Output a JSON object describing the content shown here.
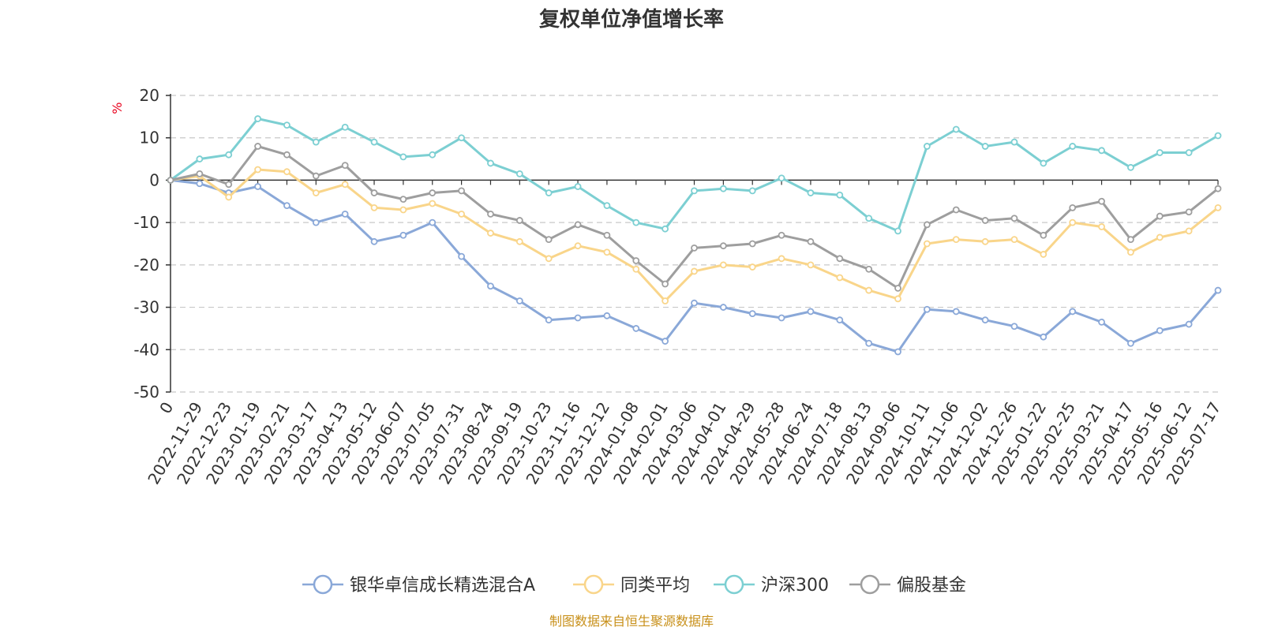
{
  "chart_data": {
    "type": "line",
    "title": "复权单位净值增长率",
    "ylabel": "%",
    "xlabel": "",
    "ylim": [
      -50,
      20
    ],
    "yticks": [
      20,
      10,
      0,
      -10,
      -20,
      -30,
      -40,
      -50
    ],
    "grid": true,
    "legend_position": "bottom",
    "source": "制图数据来自恒生聚源数据库",
    "x": [
      "0",
      "2022-11-29",
      "2022-12-23",
      "2023-01-19",
      "2023-02-21",
      "2023-03-17",
      "2023-04-13",
      "2023-05-12",
      "2023-06-07",
      "2023-07-05",
      "2023-07-31",
      "2023-08-24",
      "2023-09-19",
      "2023-10-23",
      "2023-11-16",
      "2023-12-12",
      "2024-01-08",
      "2024-02-01",
      "2024-03-06",
      "2024-04-01",
      "2024-04-29",
      "2024-05-28",
      "2024-06-24",
      "2024-07-18",
      "2024-08-13",
      "2024-09-06",
      "2024-10-11",
      "2024-11-06",
      "2024-12-02",
      "2024-12-26",
      "2025-01-22",
      "2025-02-25",
      "2025-03-21",
      "2025-04-17",
      "2025-05-16",
      "2025-06-12",
      "2025-07-17"
    ],
    "series": [
      {
        "name": "银华卓信成长精选混合A",
        "color": "#8aa8d8",
        "values": [
          0,
          -0.8,
          -3.0,
          -1.5,
          -6.0,
          -10.0,
          -8.0,
          -14.5,
          -13.0,
          -10.0,
          -18.0,
          -25.0,
          -28.5,
          -33.0,
          -32.5,
          -32.0,
          -35.0,
          -38.0,
          -29.0,
          -30.0,
          -31.5,
          -32.5,
          -31.0,
          -33.0,
          -38.5,
          -40.5,
          -30.5,
          -31.0,
          -33.0,
          -34.5,
          -37.0,
          -31.0,
          -33.5,
          -38.5,
          -35.5,
          -34.0,
          -26.0
        ]
      },
      {
        "name": "同类平均",
        "color": "#f9d58a",
        "values": [
          0,
          1.0,
          -4.0,
          2.5,
          2.0,
          -3.0,
          -1.0,
          -6.5,
          -7.0,
          -5.5,
          -8.0,
          -12.5,
          -14.5,
          -18.5,
          -15.5,
          -17.0,
          -21.0,
          -28.5,
          -21.5,
          -20.0,
          -20.5,
          -18.5,
          -20.0,
          -23.0,
          -26.0,
          -28.0,
          -15.0,
          -14.0,
          -14.5,
          -14.0,
          -17.5,
          -10.0,
          -11.0,
          -17.0,
          -13.5,
          -12.0,
          -6.5
        ]
      },
      {
        "name": "沪深300",
        "color": "#7ccfd2",
        "values": [
          0,
          5.0,
          6.0,
          14.5,
          13.0,
          9.0,
          12.5,
          9.0,
          5.5,
          6.0,
          10.0,
          4.0,
          1.5,
          -3.0,
          -1.5,
          -6.0,
          -10.0,
          -11.5,
          -2.5,
          -2.0,
          -2.5,
          0.5,
          -3.0,
          -3.5,
          -9.0,
          -12.0,
          8.0,
          12.0,
          8.0,
          9.0,
          4.0,
          8.0,
          7.0,
          3.0,
          6.5,
          6.5,
          10.5
        ]
      },
      {
        "name": "偏股基金",
        "color": "#9e9e9e",
        "values": [
          0,
          1.5,
          -1.0,
          8.0,
          6.0,
          1.0,
          3.5,
          -3.0,
          -4.5,
          -3.0,
          -2.5,
          -8.0,
          -9.5,
          -14.0,
          -10.5,
          -13.0,
          -19.0,
          -24.5,
          -16.0,
          -15.5,
          -15.0,
          -13.0,
          -14.5,
          -18.5,
          -21.0,
          -25.5,
          -10.5,
          -7.0,
          -9.5,
          -9.0,
          -13.0,
          -6.5,
          -5.0,
          -14.0,
          -8.5,
          -7.5,
          -2.0
        ]
      }
    ]
  }
}
